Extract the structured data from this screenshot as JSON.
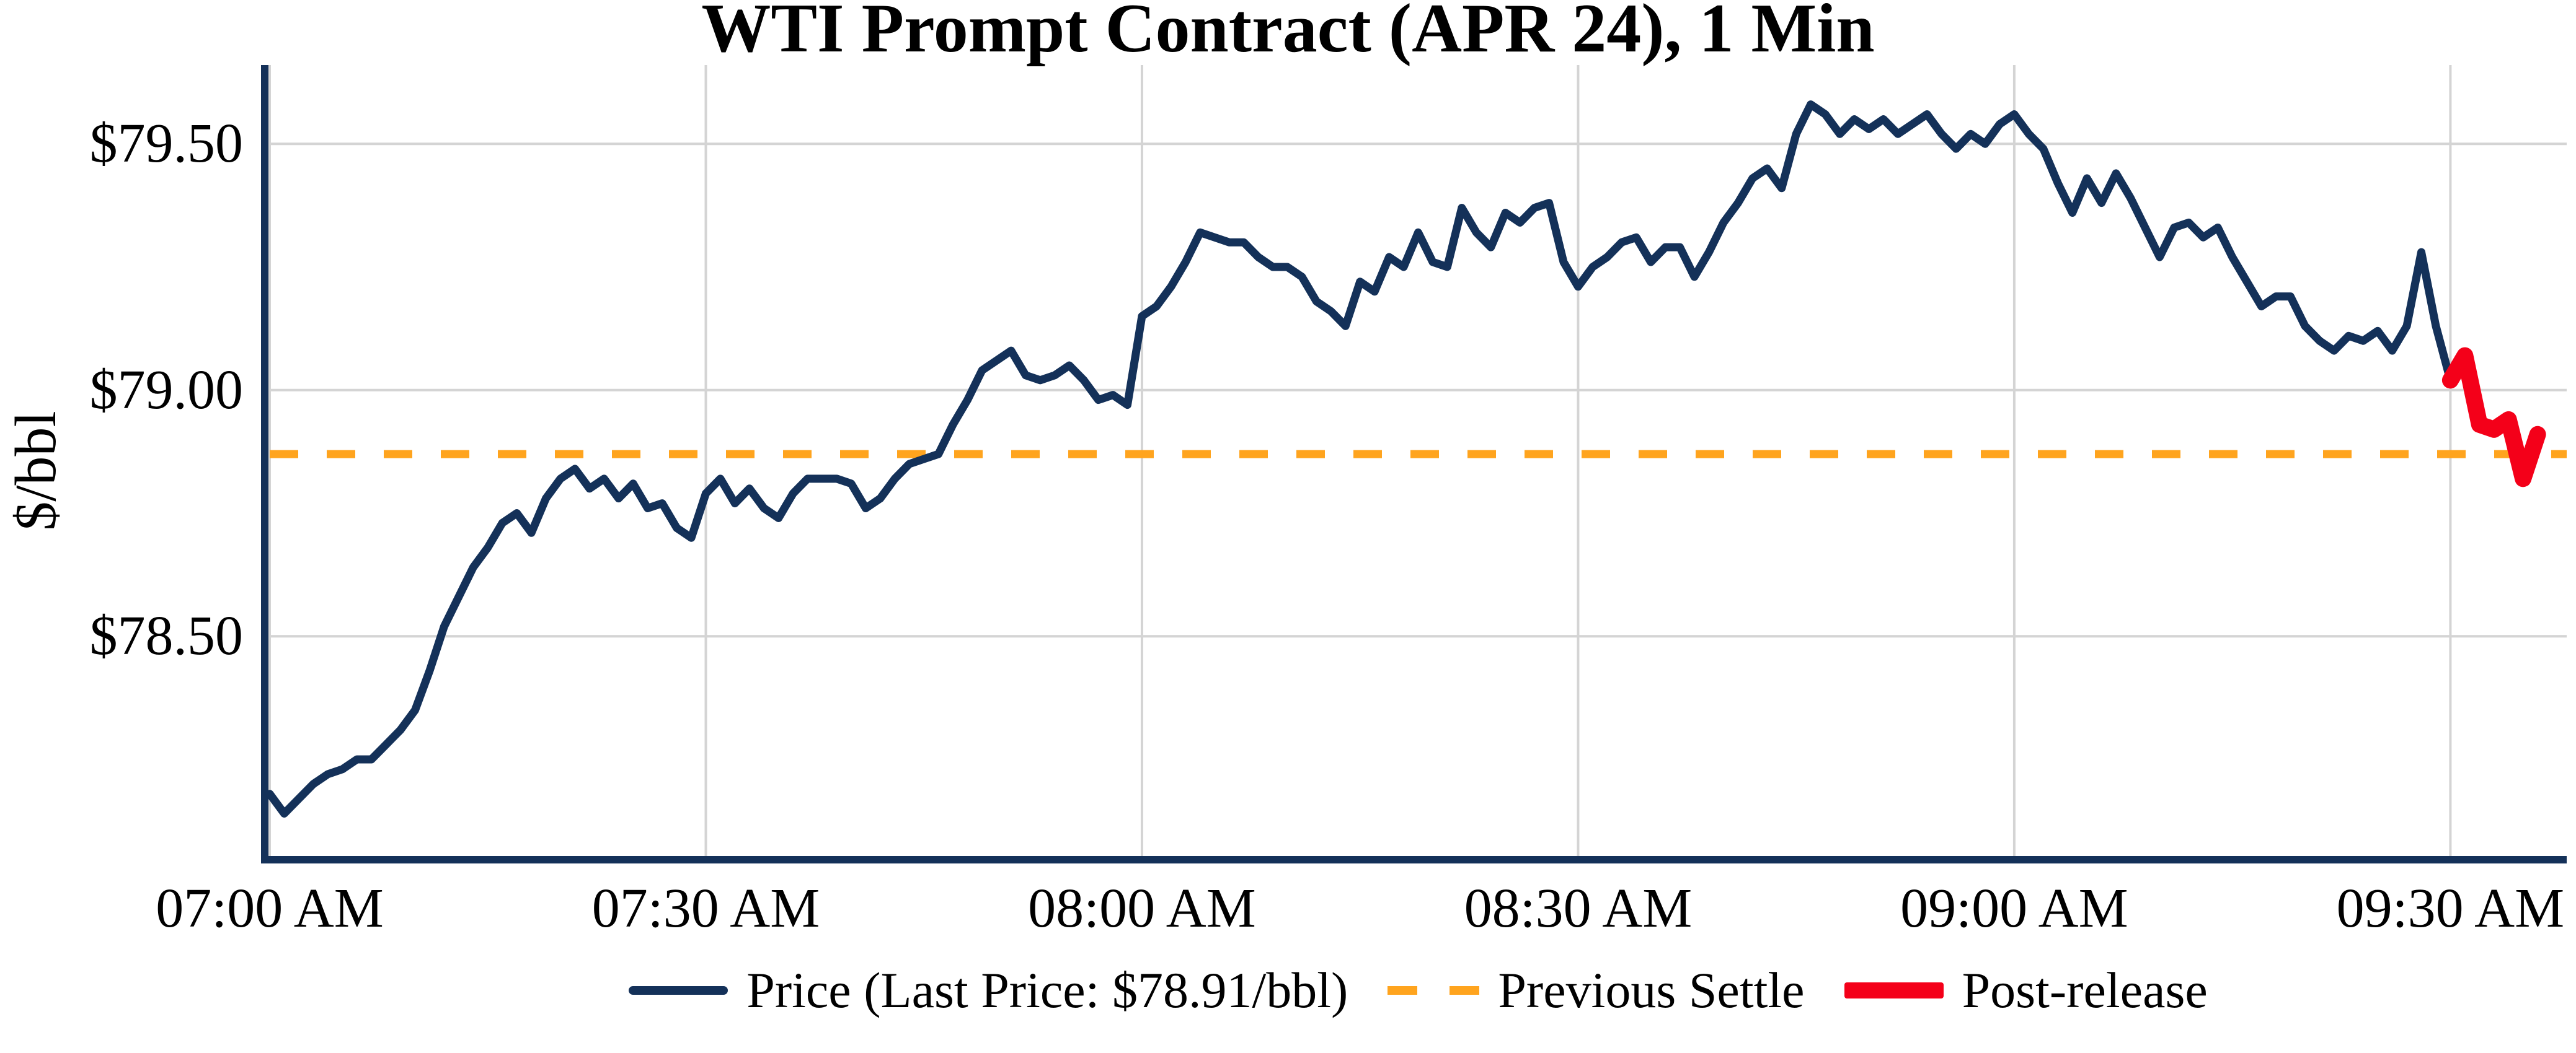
{
  "chart_data": {
    "type": "line",
    "title": "WTI Prompt Contract (APR 24), 1 Min",
    "xlabel": "",
    "ylabel": "$/bbl",
    "x_unit": "minutes after 07:00 AM",
    "xlim": [
      0,
      158
    ],
    "ylim": [
      78.05,
      79.66
    ],
    "grid": true,
    "previous_settle": 78.87,
    "last_price": 78.91,
    "x_ticks": [
      {
        "t": 0,
        "label": "07:00 AM"
      },
      {
        "t": 30,
        "label": "07:30 AM"
      },
      {
        "t": 60,
        "label": "08:00 AM"
      },
      {
        "t": 90,
        "label": "08:30 AM"
      },
      {
        "t": 120,
        "label": "09:00 AM"
      },
      {
        "t": 150,
        "label": "09:30 AM"
      }
    ],
    "y_ticks": [
      {
        "value": 78.5,
        "label": "$78.50"
      },
      {
        "value": 79.0,
        "label": "$79.00"
      },
      {
        "value": 79.5,
        "label": "$79.50"
      }
    ],
    "colors": {
      "price_line": "#143159",
      "settle_line": "#ffa41e",
      "post_release_line": "#f40019",
      "grid": "#d4d4d4",
      "spine": "#143159",
      "text": "#000000",
      "background": "#ffffff"
    },
    "legend": {
      "position": "bottom-center",
      "entries": [
        "Price (Last Price: $78.91/bbl)",
        "Previous Settle",
        "Post-release"
      ]
    },
    "series": [
      {
        "name": "Price",
        "style": "solid",
        "points": [
          [
            0,
            78.18
          ],
          [
            1,
            78.14
          ],
          [
            2,
            78.17
          ],
          [
            3,
            78.2
          ],
          [
            4,
            78.22
          ],
          [
            5,
            78.23
          ],
          [
            6,
            78.25
          ],
          [
            7,
            78.25
          ],
          [
            8,
            78.28
          ],
          [
            9,
            78.31
          ],
          [
            10,
            78.35
          ],
          [
            11,
            78.43
          ],
          [
            12,
            78.52
          ],
          [
            13,
            78.58
          ],
          [
            14,
            78.64
          ],
          [
            15,
            78.68
          ],
          [
            16,
            78.73
          ],
          [
            17,
            78.75
          ],
          [
            18,
            78.71
          ],
          [
            19,
            78.78
          ],
          [
            20,
            78.82
          ],
          [
            21,
            78.84
          ],
          [
            22,
            78.8
          ],
          [
            23,
            78.82
          ],
          [
            24,
            78.78
          ],
          [
            25,
            78.81
          ],
          [
            26,
            78.76
          ],
          [
            27,
            78.77
          ],
          [
            28,
            78.72
          ],
          [
            29,
            78.7
          ],
          [
            30,
            78.79
          ],
          [
            31,
            78.82
          ],
          [
            32,
            78.77
          ],
          [
            33,
            78.8
          ],
          [
            34,
            78.76
          ],
          [
            35,
            78.74
          ],
          [
            36,
            78.79
          ],
          [
            37,
            78.82
          ],
          [
            38,
            78.82
          ],
          [
            39,
            78.82
          ],
          [
            40,
            78.81
          ],
          [
            41,
            78.76
          ],
          [
            42,
            78.78
          ],
          [
            43,
            78.82
          ],
          [
            44,
            78.85
          ],
          [
            45,
            78.86
          ],
          [
            46,
            78.87
          ],
          [
            47,
            78.93
          ],
          [
            48,
            78.98
          ],
          [
            49,
            79.04
          ],
          [
            50,
            79.06
          ],
          [
            51,
            79.08
          ],
          [
            52,
            79.03
          ],
          [
            53,
            79.02
          ],
          [
            54,
            79.03
          ],
          [
            55,
            79.05
          ],
          [
            56,
            79.02
          ],
          [
            57,
            78.98
          ],
          [
            58,
            78.99
          ],
          [
            59,
            78.97
          ],
          [
            60,
            79.15
          ],
          [
            61,
            79.17
          ],
          [
            62,
            79.21
          ],
          [
            63,
            79.26
          ],
          [
            64,
            79.32
          ],
          [
            65,
            79.31
          ],
          [
            66,
            79.3
          ],
          [
            67,
            79.3
          ],
          [
            68,
            79.27
          ],
          [
            69,
            79.25
          ],
          [
            70,
            79.25
          ],
          [
            71,
            79.23
          ],
          [
            72,
            79.18
          ],
          [
            73,
            79.16
          ],
          [
            74,
            79.13
          ],
          [
            75,
            79.22
          ],
          [
            76,
            79.2
          ],
          [
            77,
            79.27
          ],
          [
            78,
            79.25
          ],
          [
            79,
            79.32
          ],
          [
            80,
            79.26
          ],
          [
            81,
            79.25
          ],
          [
            82,
            79.37
          ],
          [
            83,
            79.32
          ],
          [
            84,
            79.29
          ],
          [
            85,
            79.36
          ],
          [
            86,
            79.34
          ],
          [
            87,
            79.37
          ],
          [
            88,
            79.38
          ],
          [
            89,
            79.26
          ],
          [
            90,
            79.21
          ],
          [
            91,
            79.25
          ],
          [
            92,
            79.27
          ],
          [
            93,
            79.3
          ],
          [
            94,
            79.31
          ],
          [
            95,
            79.26
          ],
          [
            96,
            79.29
          ],
          [
            97,
            79.29
          ],
          [
            98,
            79.23
          ],
          [
            99,
            79.28
          ],
          [
            100,
            79.34
          ],
          [
            101,
            79.38
          ],
          [
            102,
            79.43
          ],
          [
            103,
            79.45
          ],
          [
            104,
            79.41
          ],
          [
            105,
            79.52
          ],
          [
            106,
            79.58
          ],
          [
            107,
            79.56
          ],
          [
            108,
            79.52
          ],
          [
            109,
            79.55
          ],
          [
            110,
            79.53
          ],
          [
            111,
            79.55
          ],
          [
            112,
            79.52
          ],
          [
            113,
            79.54
          ],
          [
            114,
            79.56
          ],
          [
            115,
            79.52
          ],
          [
            116,
            79.49
          ],
          [
            117,
            79.52
          ],
          [
            118,
            79.5
          ],
          [
            119,
            79.54
          ],
          [
            120,
            79.56
          ],
          [
            121,
            79.52
          ],
          [
            122,
            79.49
          ],
          [
            123,
            79.42
          ],
          [
            124,
            79.36
          ],
          [
            125,
            79.43
          ],
          [
            126,
            79.38
          ],
          [
            127,
            79.44
          ],
          [
            128,
            79.39
          ],
          [
            129,
            79.33
          ],
          [
            130,
            79.27
          ],
          [
            131,
            79.33
          ],
          [
            132,
            79.34
          ],
          [
            133,
            79.31
          ],
          [
            134,
            79.33
          ],
          [
            135,
            79.27
          ],
          [
            136,
            79.22
          ],
          [
            137,
            79.17
          ],
          [
            138,
            79.19
          ],
          [
            139,
            79.19
          ],
          [
            140,
            79.13
          ],
          [
            141,
            79.1
          ],
          [
            142,
            79.08
          ],
          [
            143,
            79.11
          ],
          [
            144,
            79.1
          ],
          [
            145,
            79.12
          ],
          [
            146,
            79.08
          ],
          [
            147,
            79.13
          ],
          [
            148,
            79.28
          ],
          [
            149,
            79.13
          ],
          [
            150,
            79.02
          ]
        ]
      },
      {
        "name": "Previous Settle",
        "style": "dashed",
        "value": 78.87
      },
      {
        "name": "Post-release",
        "style": "solid-thick",
        "points": [
          [
            150,
            79.02
          ],
          [
            151,
            79.07
          ],
          [
            152,
            78.93
          ],
          [
            153,
            78.92
          ],
          [
            154,
            78.94
          ],
          [
            155,
            78.82
          ],
          [
            156,
            78.91
          ]
        ]
      }
    ]
  }
}
